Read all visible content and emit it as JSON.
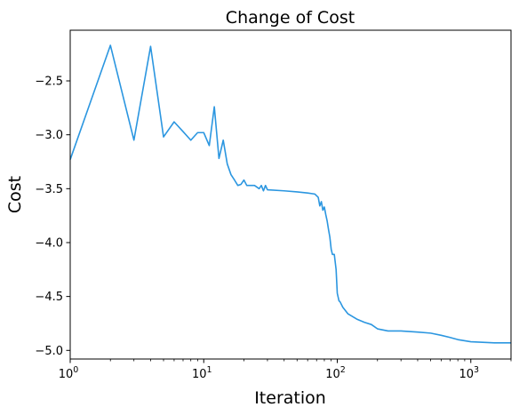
{
  "chart_data": {
    "type": "line",
    "title": "Change of Cost",
    "xlabel": "Iteration",
    "ylabel": "Cost",
    "xscale": "log",
    "xlim": [
      1,
      2000
    ],
    "ylim": [
      -5.08,
      -2.03
    ],
    "grid": false,
    "legend": "none",
    "line_color": "#2b96e0",
    "x_ticks": [
      {
        "value": 1,
        "base": "10",
        "exp": "0"
      },
      {
        "value": 10,
        "base": "10",
        "exp": "1"
      },
      {
        "value": 100,
        "base": "10",
        "exp": "2"
      },
      {
        "value": 1000,
        "base": "10",
        "exp": "3"
      }
    ],
    "y_ticks": [
      {
        "value": -2.5,
        "label": "−2.5"
      },
      {
        "value": -3.0,
        "label": "−3.0"
      },
      {
        "value": -3.5,
        "label": "−3.5"
      },
      {
        "value": -4.0,
        "label": "−4.0"
      },
      {
        "value": -4.5,
        "label": "−4.5"
      },
      {
        "value": -5.0,
        "label": "−5.0"
      }
    ],
    "series": [
      {
        "x": [
          1,
          2,
          3,
          4,
          5,
          6,
          7,
          8,
          9,
          10,
          11,
          12,
          13,
          14,
          15,
          16,
          17,
          18,
          19,
          20,
          21,
          22,
          24,
          26,
          27,
          28,
          29,
          30,
          40,
          50,
          60,
          68,
          72,
          74,
          76,
          78,
          80,
          82,
          84,
          86,
          88,
          90,
          92,
          95,
          98,
          100,
          103,
          105,
          110,
          120,
          140,
          160,
          180,
          200,
          240,
          300,
          400,
          500,
          600,
          700,
          800,
          1000,
          1500,
          2000
        ],
        "y": [
          -3.23,
          -2.17,
          -3.05,
          -2.18,
          -3.02,
          -2.88,
          -2.97,
          -3.05,
          -2.98,
          -2.98,
          -3.1,
          -2.74,
          -3.22,
          -3.05,
          -3.27,
          -3.37,
          -3.42,
          -3.47,
          -3.46,
          -3.42,
          -3.47,
          -3.47,
          -3.47,
          -3.5,
          -3.47,
          -3.52,
          -3.47,
          -3.51,
          -3.52,
          -3.53,
          -3.54,
          -3.55,
          -3.58,
          -3.66,
          -3.62,
          -3.7,
          -3.67,
          -3.74,
          -3.8,
          -3.88,
          -3.95,
          -4.06,
          -4.11,
          -4.11,
          -4.25,
          -4.47,
          -4.54,
          -4.55,
          -4.6,
          -4.66,
          -4.71,
          -4.74,
          -4.76,
          -4.8,
          -4.82,
          -4.82,
          -4.83,
          -4.84,
          -4.86,
          -4.88,
          -4.9,
          -4.92,
          -4.93,
          -4.93
        ]
      }
    ]
  }
}
